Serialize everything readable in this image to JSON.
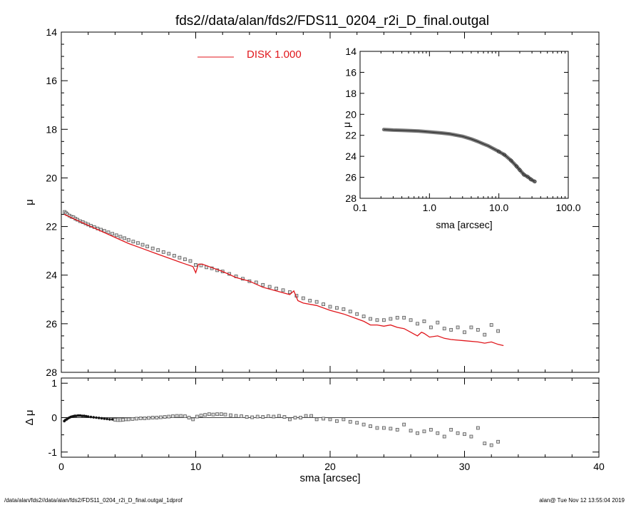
{
  "title": "fds2//data/alan/fds2/FDS11_0204_r2i_D_final.outgal",
  "footer": {
    "left": "/data/alan/fds2//data/alan/fds2/FDS11_0204_r2i_D_final.outgal_1dprof",
    "right": "alan@  Tue Nov 12 13:55:04 2019"
  },
  "colors": {
    "model": "#e0161b",
    "data": "#555555",
    "axis": "#000000"
  },
  "chart_data": [
    {
      "id": "main",
      "type": "scatter",
      "ylabel": "μ",
      "xlabel": "",
      "xlim": [
        0,
        40
      ],
      "ylim": [
        28,
        14
      ],
      "yticks": [
        14,
        16,
        18,
        20,
        22,
        24,
        26,
        28
      ],
      "xticks": [
        0,
        10,
        20,
        30,
        40
      ],
      "show_xtick_labels": false,
      "legend": {
        "label": "DISK  1.000",
        "placement": "top-center",
        "color": "#e0161b"
      },
      "series": [
        {
          "name": "DISK  1.000",
          "kind": "line",
          "x": [
            0.22,
            1,
            2,
            3,
            4,
            5,
            6,
            7,
            8,
            9,
            9.8,
            10,
            10.2,
            10.5,
            11,
            12,
            13,
            14,
            15,
            16,
            17,
            17.3,
            17.6,
            18,
            19,
            20,
            21,
            22,
            22.5,
            23,
            23.5,
            24,
            24.5,
            25,
            25.5,
            26,
            26.5,
            26.8,
            27,
            27.4,
            28,
            28.5,
            29,
            30,
            31,
            31.5,
            32,
            32.5,
            32.9
          ],
          "y": [
            21.5,
            21.7,
            21.95,
            22.2,
            22.45,
            22.7,
            22.9,
            23.1,
            23.3,
            23.5,
            23.65,
            23.9,
            23.55,
            23.55,
            23.65,
            23.85,
            24.1,
            24.25,
            24.5,
            24.65,
            24.8,
            24.65,
            25.05,
            25.15,
            25.25,
            25.45,
            25.6,
            25.8,
            25.9,
            26.05,
            26.05,
            26.1,
            26.05,
            26.15,
            26.2,
            26.35,
            26.5,
            26.35,
            26.4,
            26.55,
            26.5,
            26.6,
            26.65,
            26.7,
            26.75,
            26.8,
            26.75,
            26.85,
            26.9
          ]
        },
        {
          "name": "",
          "kind": "points",
          "x": [
            0.25,
            0.35,
            0.45,
            0.6,
            0.75,
            0.9,
            1.05,
            1.2,
            1.4,
            1.6,
            1.8,
            2.0,
            2.2,
            2.45,
            2.7,
            2.95,
            3.2,
            3.5,
            3.8,
            4.1,
            4.4,
            4.7,
            5.0,
            5.35,
            5.7,
            6.05,
            6.4,
            6.8,
            7.2,
            7.6,
            8.0,
            8.4,
            8.8,
            9.2,
            9.6,
            10.0,
            10.4,
            10.8,
            11.2,
            11.6,
            12.0,
            12.5,
            13.0,
            13.5,
            14.0,
            14.5,
            15.0,
            15.5,
            16.0,
            16.5,
            17.0,
            17.5,
            18.0,
            18.5,
            19.0,
            19.5,
            20.0,
            20.5,
            21.0,
            21.5,
            22.0,
            22.5,
            23.0,
            23.5,
            24.0,
            24.5,
            25.0,
            25.5,
            26.0,
            26.5,
            27.0,
            27.5,
            28.0,
            28.5,
            29.0,
            29.5,
            30.0,
            30.5,
            31.0,
            31.5,
            32.0,
            32.5
          ],
          "y": [
            21.4,
            21.45,
            21.5,
            21.55,
            21.6,
            21.62,
            21.68,
            21.72,
            21.78,
            21.82,
            21.87,
            21.92,
            21.97,
            22.02,
            22.08,
            22.13,
            22.18,
            22.24,
            22.3,
            22.36,
            22.42,
            22.48,
            22.55,
            22.62,
            22.68,
            22.75,
            22.82,
            22.9,
            22.97,
            23.05,
            23.12,
            23.2,
            23.28,
            23.35,
            23.42,
            23.58,
            23.6,
            23.68,
            23.72,
            23.8,
            23.85,
            23.95,
            24.05,
            24.15,
            24.25,
            24.3,
            24.4,
            24.48,
            24.55,
            24.62,
            24.7,
            24.85,
            24.95,
            25.05,
            25.1,
            25.2,
            25.3,
            25.35,
            25.4,
            25.5,
            25.6,
            25.7,
            25.8,
            25.85,
            25.85,
            25.8,
            25.75,
            25.75,
            25.85,
            26.0,
            25.9,
            26.15,
            25.95,
            26.2,
            26.25,
            26.15,
            26.35,
            26.15,
            26.25,
            26.45,
            26.05,
            26.3
          ]
        }
      ]
    },
    {
      "id": "inset",
      "type": "scatter",
      "xlabel": "sma [arcsec]",
      "ylabel": "μ",
      "xscale": "log",
      "xlim": [
        0.1,
        100.0
      ],
      "ylim": [
        28,
        14
      ],
      "yticks": [
        14,
        16,
        18,
        20,
        22,
        24,
        26,
        28
      ],
      "xticks": [
        0.1,
        1.0,
        10.0,
        100.0
      ],
      "xtick_labels": [
        "0.1",
        "1.0",
        "10.0",
        "100.0"
      ],
      "series": [
        {
          "name": "",
          "kind": "band",
          "x": [
            0.22,
            0.3,
            0.4,
            0.5,
            0.7,
            1.0,
            1.5,
            2.0,
            3.0,
            4.0,
            5.0,
            6.0,
            7.0,
            8.0,
            10.0,
            12.0,
            15.0,
            18.0,
            20.0,
            23.0,
            26.0,
            29.0,
            32.9
          ],
          "y": [
            21.45,
            21.5,
            21.52,
            21.55,
            21.6,
            21.68,
            21.78,
            21.88,
            22.1,
            22.35,
            22.6,
            22.82,
            23.0,
            23.2,
            23.55,
            23.85,
            24.4,
            24.95,
            25.3,
            25.75,
            25.95,
            26.2,
            26.4
          ]
        }
      ]
    },
    {
      "id": "residual",
      "type": "scatter",
      "xlabel": "sma [arcsec]",
      "ylabel": "Δ μ",
      "xlim": [
        0,
        40
      ],
      "ylim": [
        -1.15,
        1.15
      ],
      "yticks": [
        1,
        0,
        -1
      ],
      "xticks": [
        0,
        10,
        20,
        30,
        40
      ],
      "zero_line": true,
      "series": [
        {
          "name": "",
          "kind": "points",
          "x": [
            0.22,
            0.3,
            0.4,
            0.5,
            0.6,
            0.7,
            0.8,
            0.9,
            1.0,
            1.1,
            1.25,
            1.4,
            1.55,
            1.7,
            1.85,
            2.0,
            2.2,
            2.4,
            2.6,
            2.8,
            3.0,
            3.2,
            3.4,
            3.6,
            3.8,
            4.0,
            4.2,
            4.4,
            4.6,
            4.8,
            5.0,
            5.3,
            5.6,
            5.9,
            6.2,
            6.5,
            6.8,
            7.1,
            7.4,
            7.7,
            8.0,
            8.3,
            8.6,
            8.9,
            9.2,
            9.5,
            9.8,
            10.1,
            10.4,
            10.7,
            11.0,
            11.3,
            11.6,
            11.9,
            12.2,
            12.6,
            13.0,
            13.4,
            13.8,
            14.2,
            14.6,
            15.0,
            15.4,
            15.8,
            16.2,
            16.6,
            17.0,
            17.4,
            17.8,
            18.2,
            18.6,
            19.0,
            19.5,
            20.0,
            20.5,
            21.0,
            21.5,
            22.0,
            22.5,
            23.0,
            23.5,
            24.0,
            24.5,
            25.0,
            25.5,
            26.0,
            26.5,
            27.0,
            27.5,
            28.0,
            28.5,
            29.0,
            29.5,
            30.0,
            30.5,
            31.0,
            31.5,
            32.0,
            32.5
          ],
          "y": [
            -0.1,
            -0.07,
            -0.05,
            -0.02,
            0.0,
            0.02,
            0.03,
            0.04,
            0.05,
            0.05,
            0.06,
            0.06,
            0.05,
            0.05,
            0.04,
            0.03,
            0.02,
            0.01,
            0.0,
            -0.01,
            -0.02,
            -0.03,
            -0.04,
            -0.05,
            -0.05,
            -0.06,
            -0.07,
            -0.07,
            -0.06,
            -0.05,
            -0.05,
            -0.04,
            -0.03,
            -0.02,
            -0.02,
            -0.01,
            0.0,
            0.0,
            0.01,
            0.02,
            0.03,
            0.04,
            0.05,
            0.05,
            0.04,
            0.0,
            -0.05,
            0.03,
            0.06,
            0.08,
            0.1,
            0.09,
            0.1,
            0.1,
            0.09,
            0.07,
            0.05,
            0.04,
            0.02,
            0.01,
            0.03,
            0.02,
            0.04,
            0.03,
            0.05,
            0.02,
            -0.05,
            0.0,
            0.0,
            0.05,
            0.05,
            -0.05,
            -0.03,
            -0.05,
            -0.1,
            -0.05,
            -0.12,
            -0.15,
            -0.2,
            -0.25,
            -0.3,
            -0.3,
            -0.32,
            -0.35,
            -0.2,
            -0.38,
            -0.45,
            -0.4,
            -0.35,
            -0.45,
            -0.55,
            -0.35,
            -0.45,
            -0.48,
            -0.55,
            -0.3,
            -0.75,
            -0.8,
            -0.7
          ]
        }
      ]
    }
  ]
}
